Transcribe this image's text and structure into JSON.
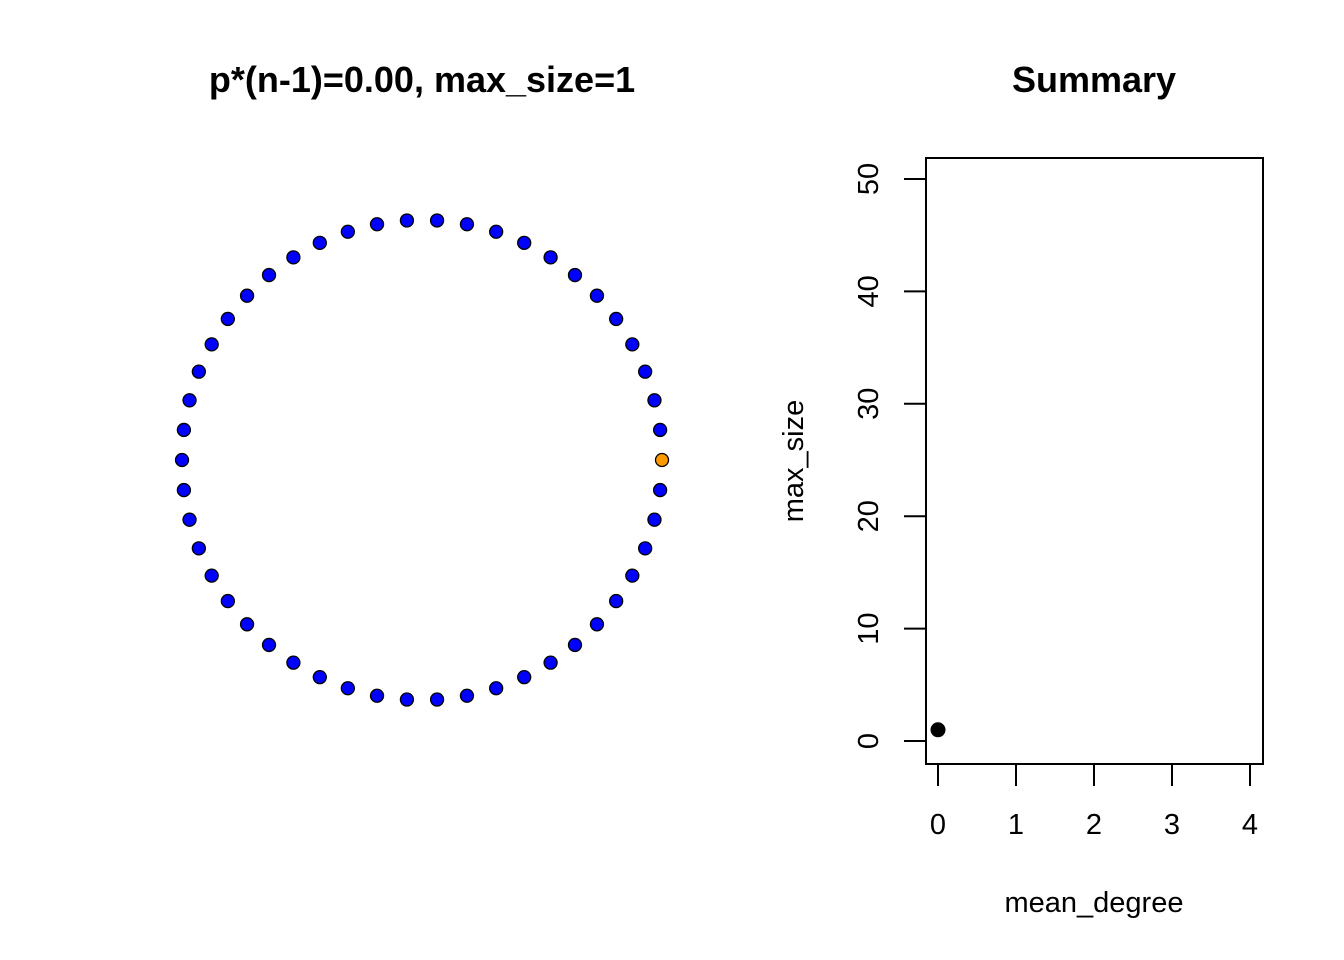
{
  "colors": {
    "background": "#ffffff",
    "node_default": "#0000ff",
    "node_highlight": "#ff9900",
    "node_outline": "#000000",
    "summary_point": "#000000",
    "axis": "#000000"
  },
  "chart_data": [
    {
      "type": "network",
      "title": "p*(n-1)=0.00, max_size=1",
      "layout": "circle",
      "node_count": 50,
      "edges": [],
      "highlighted_nodes": [
        0
      ],
      "axes": "none"
    },
    {
      "type": "scatter",
      "title": "Summary",
      "xlabel": "mean_degree",
      "ylabel": "max_size",
      "xlim": [
        0,
        4
      ],
      "ylim": [
        0,
        50
      ],
      "xticks": [
        "0",
        "1",
        "2",
        "3",
        "4"
      ],
      "yticks": [
        "0",
        "10",
        "20",
        "30",
        "40",
        "50"
      ],
      "x": [
        0
      ],
      "y": [
        1
      ],
      "grid": false,
      "legend": "none"
    }
  ]
}
